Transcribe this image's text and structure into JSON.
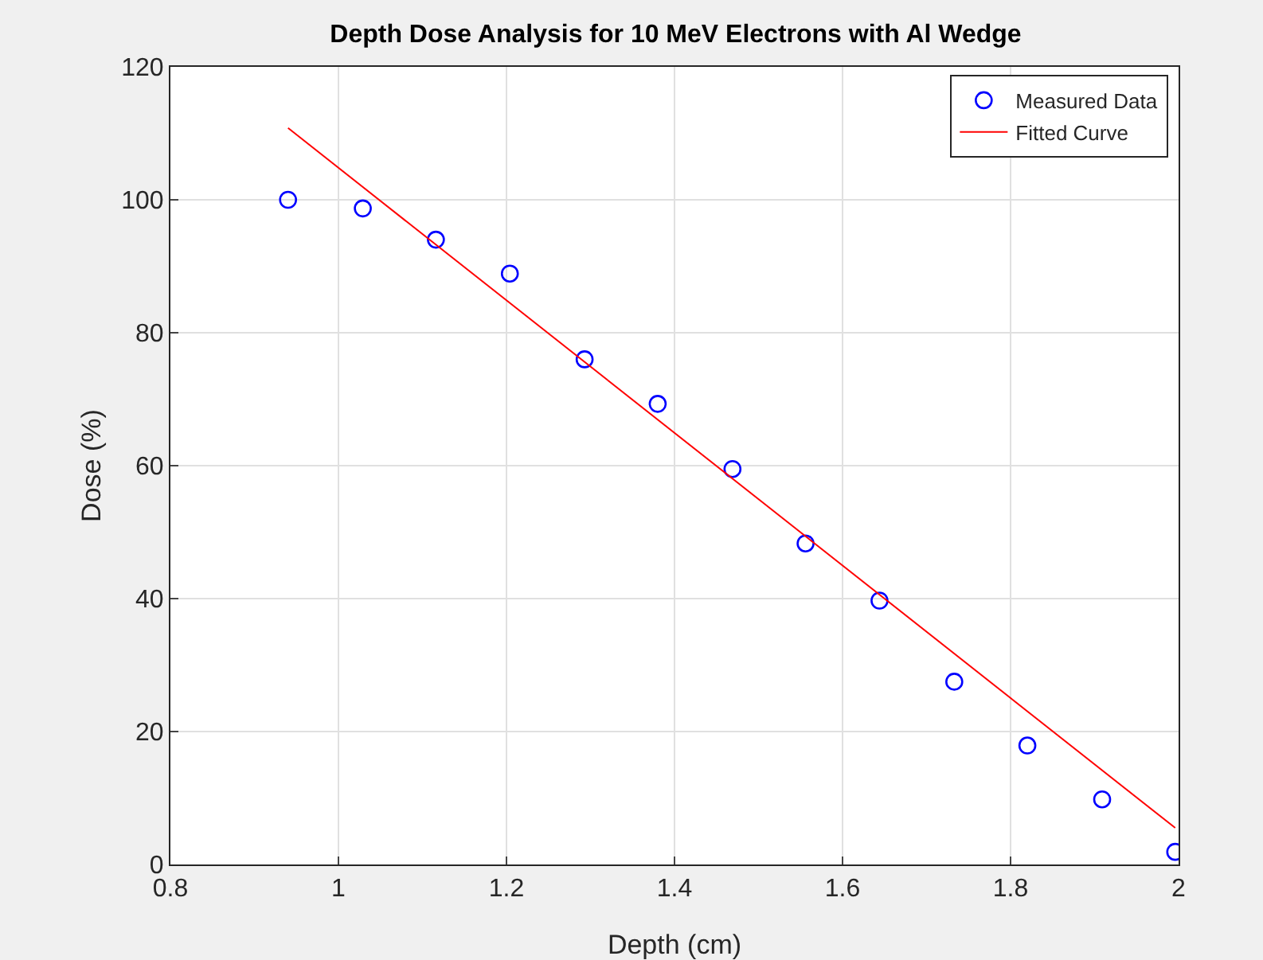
{
  "chart_data": {
    "type": "scatter",
    "title": "Depth Dose Analysis for 10 MeV Electrons with Al Wedge",
    "xlabel": "Depth (cm)",
    "ylabel": "Dose (%)",
    "series": [
      {
        "name": "Measured Data",
        "marker": "circle",
        "color": "#0000ff",
        "x": [
          0.94,
          1.029,
          1.116,
          1.204,
          1.293,
          1.38,
          1.469,
          1.556,
          1.644,
          1.733,
          1.82,
          1.909,
          1.996
        ],
        "values": [
          100,
          98.7,
          94,
          88.9,
          76,
          69.3,
          59.5,
          48.3,
          39.7,
          27.5,
          17.9,
          9.8,
          1.9
        ]
      },
      {
        "name": "Fitted Curve",
        "type": "line",
        "color": "#ff0000",
        "x": [
          0.94,
          1.996
        ],
        "values": [
          110.8,
          5.5
        ]
      }
    ],
    "xlim": [
      0.8,
      2
    ],
    "xticks": [
      0.8,
      1,
      1.2,
      1.4,
      1.6,
      1.8,
      2
    ],
    "ylim": [
      0,
      120
    ],
    "yticks": [
      0,
      20,
      40,
      60,
      80,
      100,
      120
    ],
    "grid": true,
    "legend": "top right"
  }
}
